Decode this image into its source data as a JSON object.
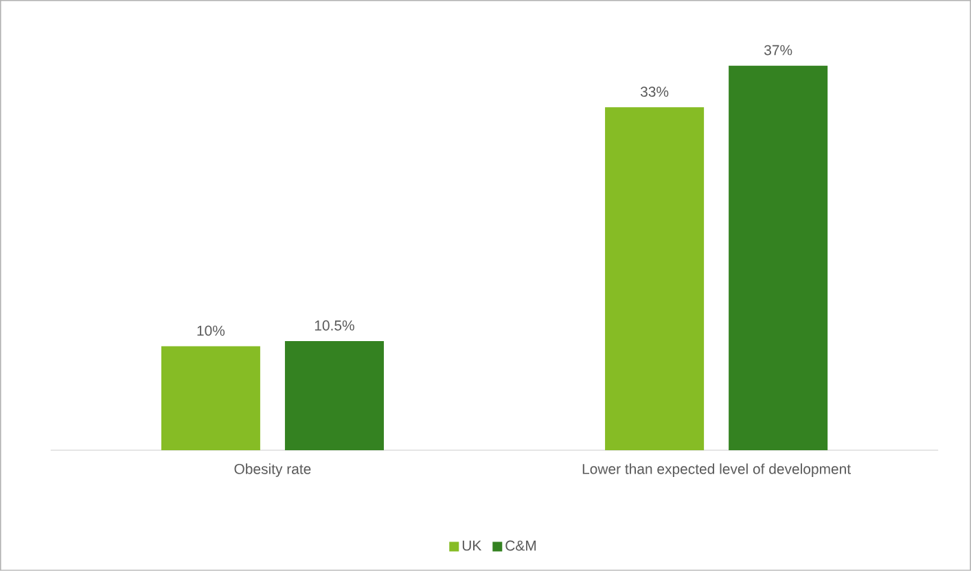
{
  "chart_data": {
    "type": "bar",
    "categories": [
      "Obesity rate",
      "Lower than expected level of development"
    ],
    "series": [
      {
        "name": "UK",
        "color": "#86bc25",
        "values": [
          10,
          33
        ],
        "value_labels": [
          "10%",
          "33%"
        ]
      },
      {
        "name": "C&M",
        "color": "#348221",
        "values": [
          10.5,
          37
        ],
        "value_labels": [
          "10.5%",
          "37%"
        ]
      }
    ],
    "legend": "bottom"
  }
}
